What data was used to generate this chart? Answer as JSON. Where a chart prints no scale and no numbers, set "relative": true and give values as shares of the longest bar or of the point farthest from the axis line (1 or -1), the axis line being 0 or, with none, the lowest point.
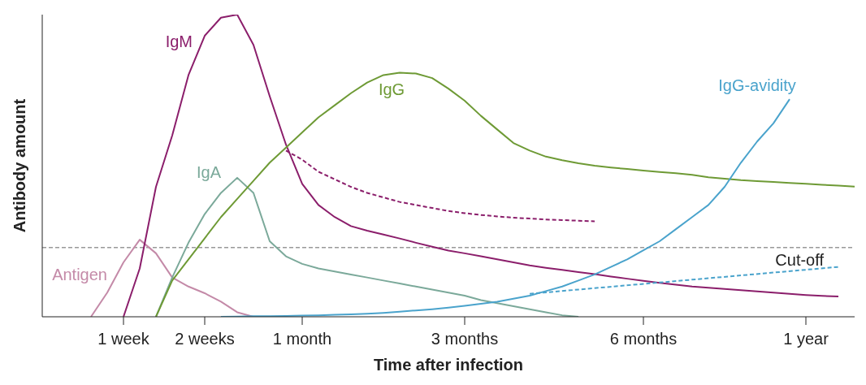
{
  "chart_data": {
    "type": "line",
    "relative": true,
    "xlabel": "Time after infection",
    "ylabel": "Antibody amount",
    "categories": [
      null,
      null,
      null,
      null,
      null,
      "1 week",
      null,
      null,
      null,
      null,
      "2 weeks",
      null,
      null,
      null,
      null,
      null,
      "1 month",
      null,
      null,
      null,
      null,
      null,
      null,
      null,
      null,
      null,
      "3 months",
      null,
      null,
      null,
      null,
      null,
      null,
      null,
      null,
      null,
      null,
      "6 months",
      null,
      null,
      null,
      null,
      null,
      null,
      null,
      null,
      null,
      "1  year",
      null,
      null,
      null
    ],
    "series": [
      {
        "name": "Antigen",
        "color": "#c48aa8",
        "values": [
          null,
          null,
          null,
          0,
          0.08,
          0.18,
          0.255,
          0.21,
          0.13,
          0.1,
          0.078,
          0.05,
          0.015,
          0,
          null,
          null,
          null,
          null,
          null,
          null,
          null,
          null,
          null,
          null,
          null,
          null,
          null,
          null,
          null,
          null,
          null,
          null,
          null,
          null,
          null,
          null,
          null,
          null,
          null,
          null,
          null,
          null,
          null,
          null,
          null,
          null,
          null,
          null,
          null,
          null,
          null
        ]
      },
      {
        "name": "IgM",
        "color": "#8b1e6b",
        "values": [
          null,
          null,
          null,
          null,
          null,
          0,
          0.16,
          0.43,
          0.6,
          0.8,
          0.93,
          0.99,
          1,
          0.9,
          0.73,
          0.57,
          0.44,
          0.37,
          0.33,
          0.3,
          0.285,
          0.272,
          0.259,
          0.245,
          0.232,
          0.219,
          0.21,
          0.2,
          0.19,
          0.18,
          0.17,
          0.162,
          0.155,
          0.148,
          0.141,
          0.133,
          0.126,
          0.119,
          0.112,
          0.106,
          0.1,
          0.096,
          0.092,
          0.088,
          0.084,
          0.08,
          0.076,
          0.072,
          0.069,
          0.067,
          null
        ]
      },
      {
        "color": "#8b1e6b",
        "line_style": "dashed",
        "values": [
          null,
          null,
          null,
          null,
          null,
          null,
          null,
          null,
          null,
          null,
          null,
          null,
          null,
          null,
          null,
          0.55,
          0.52,
          0.48,
          0.455,
          0.43,
          0.41,
          0.395,
          0.38,
          0.37,
          0.36,
          0.35,
          0.343,
          0.337,
          0.332,
          0.328,
          0.325,
          0.322,
          0.32,
          0.318,
          0.316,
          null,
          null,
          null,
          null,
          null,
          null,
          null,
          null,
          null,
          null,
          null,
          null,
          null,
          null,
          null,
          null
        ]
      },
      {
        "name": "IgA",
        "color": "#7ba99a",
        "values": [
          null,
          null,
          null,
          null,
          null,
          null,
          null,
          0,
          0.13,
          0.245,
          0.34,
          0.41,
          0.46,
          0.41,
          0.25,
          0.2,
          0.175,
          0.16,
          0.15,
          0.14,
          0.13,
          0.12,
          0.11,
          0.1,
          0.09,
          0.08,
          0.07,
          0.055,
          0.045,
          0.035,
          0.025,
          0.015,
          0.005,
          0,
          null,
          null,
          null,
          null,
          null,
          null,
          null,
          null,
          null,
          null,
          null,
          null,
          null,
          null,
          null,
          null,
          null
        ]
      },
      {
        "name": "IgG",
        "color": "#6e9a35",
        "values": [
          null,
          null,
          null,
          null,
          null,
          null,
          null,
          0,
          0.12,
          0.19,
          0.26,
          0.33,
          0.39,
          0.45,
          0.51,
          0.56,
          0.61,
          0.66,
          0.7,
          0.74,
          0.775,
          0.8,
          0.808,
          0.805,
          0.79,
          0.755,
          0.715,
          0.665,
          0.62,
          0.575,
          0.55,
          0.53,
          0.518,
          0.508,
          0.5,
          0.494,
          0.489,
          0.484,
          0.479,
          0.475,
          0.47,
          0.462,
          0.457,
          0.452,
          0.449,
          0.446,
          0.443,
          0.44,
          0.437,
          0.434,
          0.431
        ]
      },
      {
        "name": "IgG-avidity",
        "color": "#4aa3cc",
        "values": [
          null,
          null,
          null,
          null,
          null,
          null,
          null,
          null,
          null,
          null,
          null,
          0,
          0.001,
          0.002,
          0.002,
          0.003,
          0.004,
          0.005,
          0.007,
          0.008,
          0.01,
          0.013,
          0.017,
          0.021,
          0.025,
          0.03,
          0.036,
          0.043,
          0.05,
          0.06,
          0.07,
          0.085,
          0.1,
          0.12,
          0.14,
          0.165,
          0.19,
          0.22,
          0.25,
          0.29,
          0.33,
          0.37,
          0.43,
          0.51,
          0.58,
          0.64,
          0.72,
          null,
          null,
          null,
          null
        ]
      },
      {
        "color": "#4aa3cc",
        "line_style": "dashed",
        "values": [
          null,
          null,
          null,
          null,
          null,
          null,
          null,
          null,
          null,
          null,
          null,
          null,
          null,
          null,
          null,
          null,
          null,
          null,
          null,
          null,
          null,
          null,
          null,
          null,
          null,
          null,
          null,
          null,
          null,
          null,
          0.076,
          null,
          null,
          null,
          null,
          null,
          null,
          null,
          null,
          null,
          null,
          null,
          null,
          null,
          null,
          null,
          null,
          null,
          null,
          0.165,
          null
        ]
      }
    ],
    "ref_lines": [
      {
        "axis": "y",
        "value": 0.229,
        "label": "Cut-off",
        "color": "#999999",
        "line_style": "dashed"
      }
    ],
    "legend": false,
    "grid": false
  }
}
